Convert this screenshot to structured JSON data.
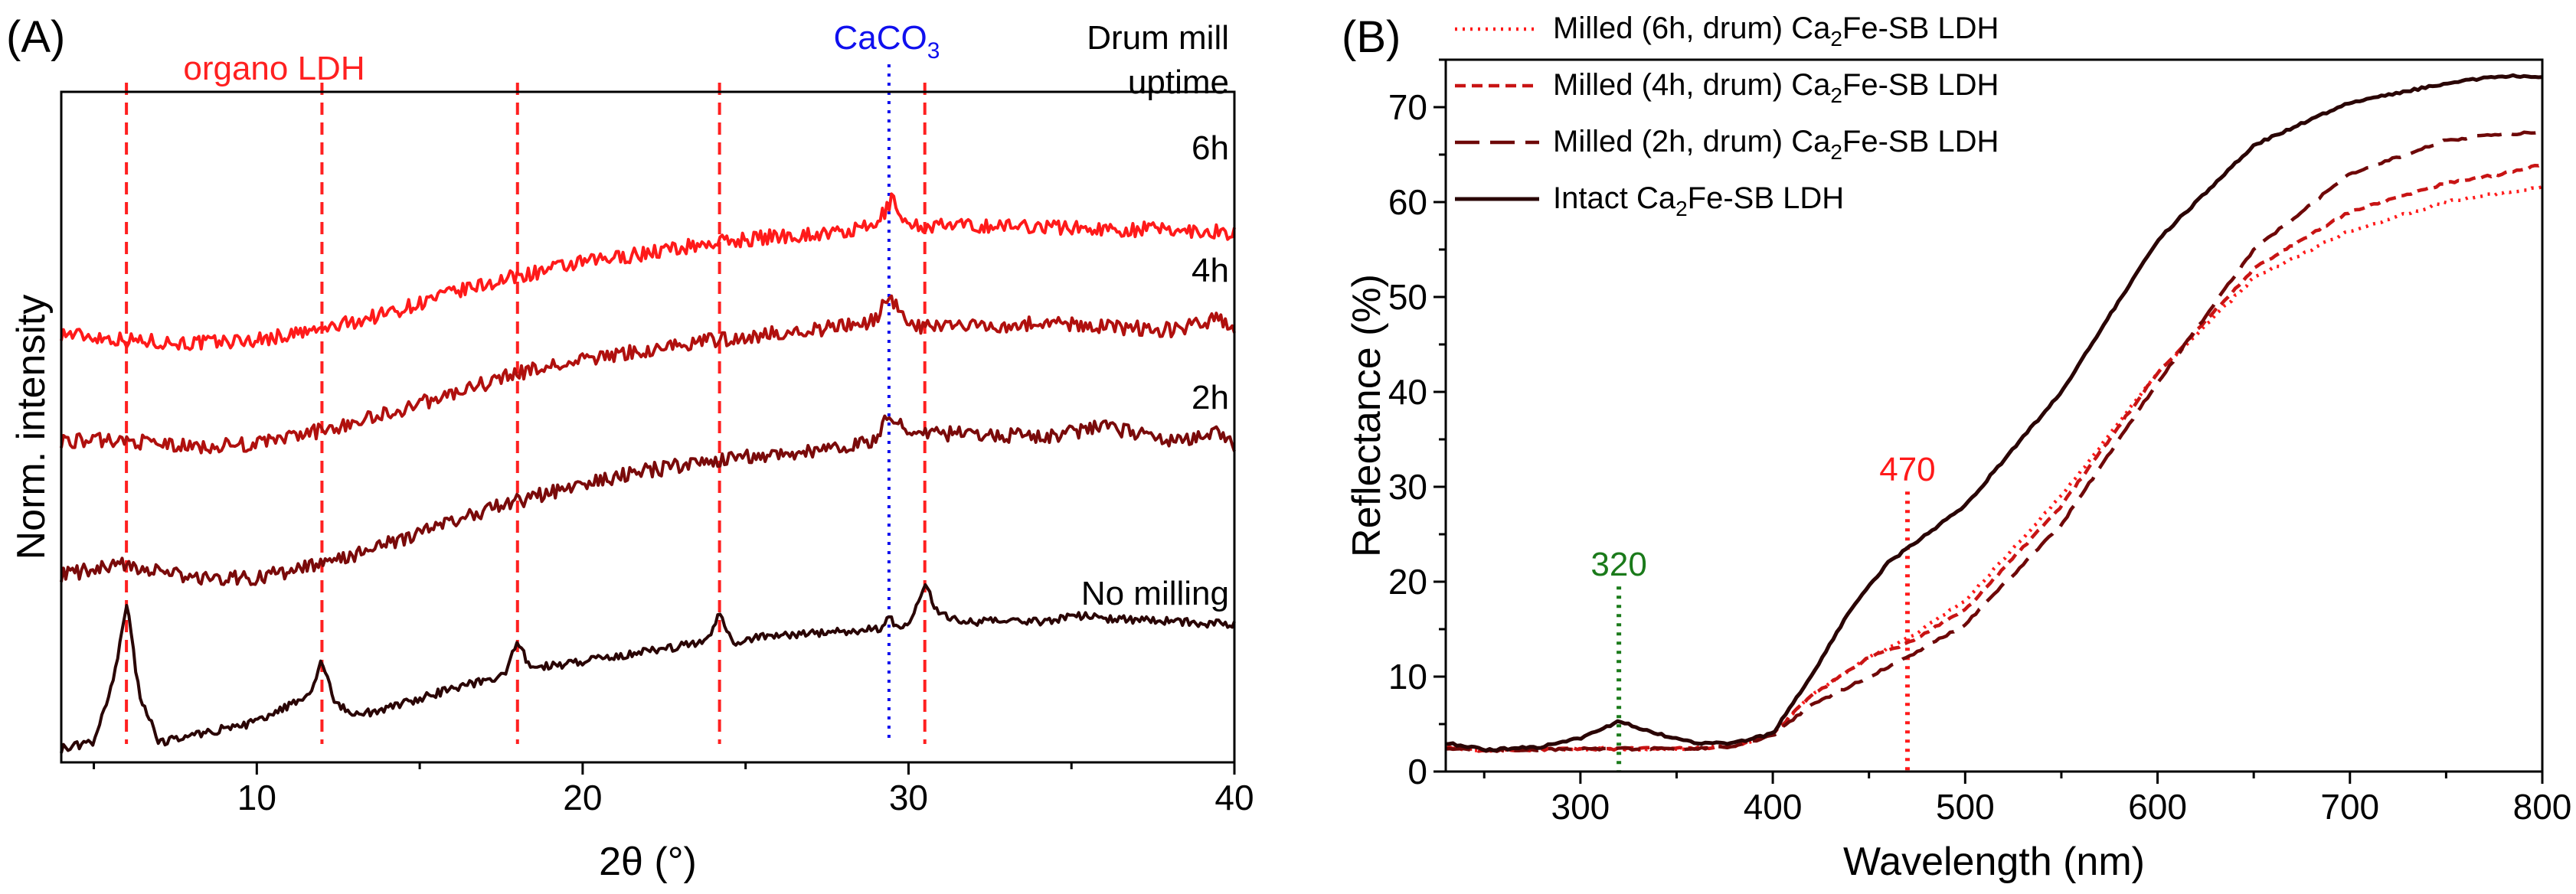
{
  "chart_data": [
    {
      "panel": "(A)",
      "type": "line",
      "xlabel": "2θ (°)",
      "ylabel": "Norm. intensity",
      "xlim": [
        4,
        40
      ],
      "ylim": [
        0,
        100
      ],
      "x_ticks": [
        10,
        20,
        30,
        40
      ],
      "y_ticks_labeled": false,
      "offset_header": [
        "Drum mill",
        "uptime"
      ],
      "ref_lines": [
        {
          "label": "organo LDH",
          "positions": [
            6.0,
            12.0,
            18.0,
            24.2,
            30.5
          ],
          "style": "dashed",
          "color": "#ff2020"
        },
        {
          "label": "CaCO3",
          "label_main": "CaCO",
          "label_sub": "3",
          "positions": [
            29.4
          ],
          "style": "dotted",
          "color": "#1010ee"
        }
      ],
      "series": [
        {
          "name": "6h",
          "color": "#ff1a1a",
          "x": [
            4,
            6,
            8,
            10,
            12,
            14,
            16,
            18,
            20,
            22,
            24,
            26,
            28,
            29,
            29.5,
            30,
            32,
            34,
            36,
            38,
            40
          ],
          "y": [
            64,
            63,
            62.5,
            63,
            64.5,
            67,
            70,
            72.5,
            74.5,
            76,
            77.5,
            78.5,
            79,
            80,
            84,
            80,
            80,
            80,
            79.5,
            79.5,
            79
          ]
        },
        {
          "name": "4h",
          "color": "#b0100e",
          "x": [
            4,
            6,
            8,
            10,
            12,
            14,
            16,
            18,
            20,
            22,
            24,
            26,
            28,
            29,
            29.4,
            30,
            32,
            34,
            36,
            38,
            39.5,
            40
          ],
          "y": [
            48,
            48,
            47,
            47.5,
            49.5,
            52,
            55,
            58,
            60,
            61.5,
            63,
            64,
            65,
            66,
            70,
            65,
            65,
            65.5,
            65,
            64.5,
            66,
            64
          ]
        },
        {
          "name": "2h",
          "color": "#7a0a0a",
          "x": [
            4,
            6,
            8,
            10,
            12,
            14,
            16,
            18,
            20,
            22,
            24,
            26,
            28,
            29,
            29.4,
            30,
            32,
            34,
            36,
            38,
            39.5,
            40
          ],
          "y": [
            28,
            29.5,
            27.5,
            27.5,
            29.5,
            32.5,
            36,
            39,
            41.5,
            43.5,
            45,
            46,
            47,
            48,
            52,
            49,
            49,
            48.5,
            50,
            48,
            49,
            47
          ]
        },
        {
          "name": "No milling",
          "color": "#2a0505",
          "x": [
            4,
            5,
            5.6,
            6.0,
            6.4,
            7,
            8,
            10,
            11.6,
            12.0,
            12.4,
            13,
            14,
            16,
            17.6,
            18.0,
            18.4,
            20,
            22,
            23.8,
            24.2,
            24.6,
            26,
            28,
            29.2,
            29.4,
            29.6,
            30.1,
            30.5,
            30.9,
            32,
            34,
            35.5,
            36,
            38,
            40
          ],
          "y": [
            2,
            3,
            12,
            24,
            10,
            3,
            4,
            6,
            10,
            15,
            9,
            7,
            8,
            11,
            13,
            18,
            14,
            15,
            16.5,
            18,
            22,
            18,
            19,
            19.5,
            20,
            22,
            20,
            21,
            27,
            22,
            21,
            21,
            22,
            21.5,
            21,
            20.5
          ]
        }
      ]
    },
    {
      "panel": "(B)",
      "type": "line",
      "xlabel": "Wavelength (nm)",
      "ylabel": "Reflectance (%)",
      "xlim": [
        230,
        800
      ],
      "ylim": [
        0,
        75
      ],
      "x_ticks": [
        300,
        400,
        500,
        600,
        700,
        800
      ],
      "y_ticks": [
        0,
        10,
        20,
        30,
        40,
        50,
        60,
        70
      ],
      "markers": [
        {
          "label": "320",
          "x": 320,
          "y_top": 19.5,
          "color": "#1a7a1a",
          "style": "dotted"
        },
        {
          "label": "470",
          "x": 470,
          "y_top": 29.5,
          "color": "#ff1a1a",
          "style": "dotted"
        }
      ],
      "series": [
        {
          "name_prefix": "Milled (6h, drum) Ca",
          "name_sub": "2",
          "name_suffix": "Fe-SB LDH",
          "style": "dotted",
          "color": "#ff1a1a",
          "x": [
            230,
            250,
            300,
            350,
            380,
            400,
            420,
            450,
            470,
            500,
            550,
            600,
            650,
            700,
            750,
            780,
            800
          ],
          "y": [
            2.5,
            2.2,
            2.4,
            2.4,
            2.6,
            4,
            8,
            12,
            14,
            18,
            29,
            42,
            52,
            57,
            60,
            61,
            61.5
          ]
        },
        {
          "name_prefix": "Milled (4h, drum) Ca",
          "name_sub": "2",
          "name_suffix": "Fe-SB LDH",
          "style": "dashed",
          "color": "#c81414",
          "x": [
            230,
            250,
            300,
            350,
            380,
            400,
            420,
            450,
            470,
            500,
            550,
            600,
            650,
            700,
            750,
            780,
            800
          ],
          "y": [
            2.5,
            2.2,
            2.4,
            2.4,
            2.6,
            4,
            8,
            12,
            13.5,
            17,
            28,
            42,
            53,
            59,
            62,
            63,
            64
          ]
        },
        {
          "name_prefix": "Milled (2h, drum) Ca",
          "name_sub": "2",
          "name_suffix": "Fe-SB LDH",
          "style": "longdash",
          "color": "#6e0808",
          "x": [
            230,
            250,
            300,
            350,
            380,
            400,
            420,
            450,
            470,
            500,
            550,
            600,
            650,
            700,
            750,
            780,
            800
          ],
          "y": [
            2.5,
            2.2,
            2.4,
            2.4,
            2.6,
            3.8,
            7,
            10,
            12,
            15.5,
            26,
            41,
            55,
            63,
            66.5,
            67.2,
            67.3
          ]
        },
        {
          "name_prefix": "Intact Ca",
          "name_sub": "2",
          "name_suffix": "Fe-SB LDH",
          "style": "solid",
          "color": "#2a0505",
          "x": [
            230,
            250,
            280,
            300,
            320,
            340,
            360,
            380,
            400,
            420,
            440,
            460,
            480,
            500,
            550,
            600,
            650,
            700,
            750,
            780,
            800
          ],
          "y": [
            3,
            2.3,
            2.6,
            3.5,
            5.3,
            4,
            3,
            3,
            4,
            10,
            17,
            22,
            25,
            28,
            40,
            56,
            66,
            70.5,
            72.5,
            73.3,
            73.2
          ]
        }
      ]
    }
  ]
}
